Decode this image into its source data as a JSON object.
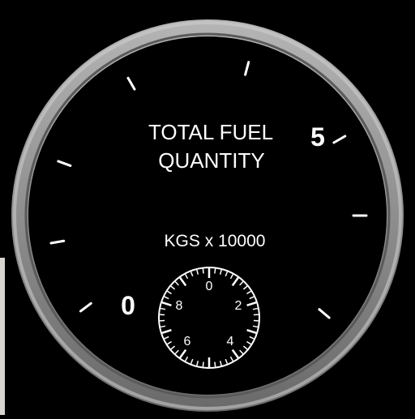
{
  "gauge": {
    "title_line1": "TOTAL FUEL",
    "title_line2": "QUANTITY",
    "units": "KGS x 10000",
    "main_scale": {
      "min": 0,
      "max": 5,
      "labels": [
        "0",
        "5"
      ]
    },
    "sub_dial": {
      "labels": [
        "0",
        "2",
        "4",
        "6",
        "8"
      ]
    },
    "colors": {
      "bezel": "#8a8a8a",
      "face": "#000000",
      "marking": "#ffffff"
    }
  }
}
